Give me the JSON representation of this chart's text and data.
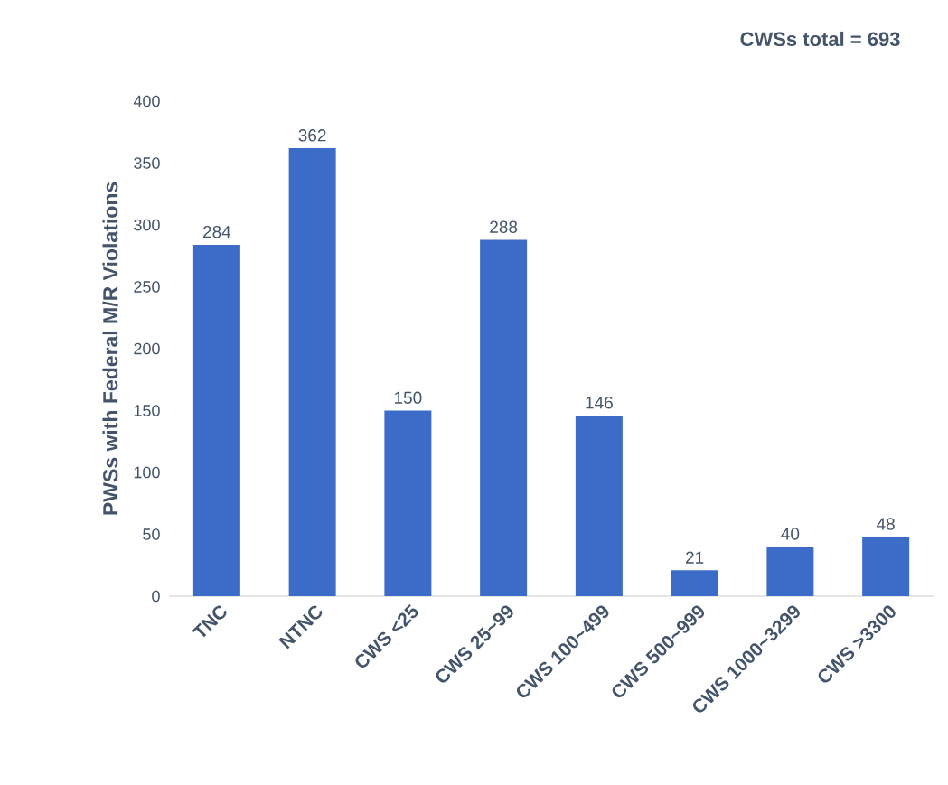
{
  "chart_data": {
    "type": "bar",
    "ylabel": "PWSs with Federal M/R Violations",
    "categories": [
      "TNC",
      "NTNC",
      "CWS <25",
      "CWS 25~99",
      "CWS 100~499",
      "CWS 500~999",
      "CWS 1000~3299",
      "CWS >3300"
    ],
    "values": [
      284,
      362,
      150,
      288,
      146,
      21,
      40,
      48
    ],
    "color": "#3d6cc8",
    "ylim": [
      0,
      400
    ],
    "yticks": [
      0,
      50,
      100,
      150,
      200,
      250,
      300,
      350,
      400
    ],
    "data_labels": true,
    "annotations": [
      "CWSs total = 693"
    ]
  }
}
